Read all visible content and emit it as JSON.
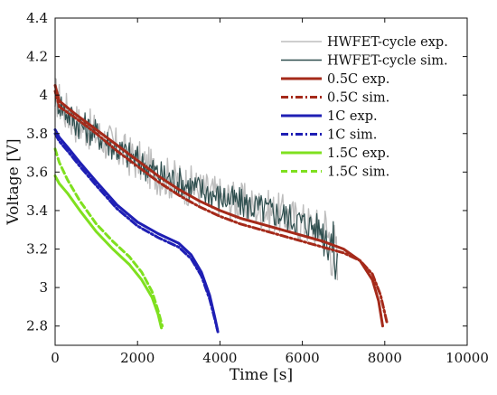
{
  "chart_data": {
    "type": "line",
    "title": "",
    "xlabel": "Time [s]",
    "ylabel": "Voltage [V]",
    "xlim": [
      0,
      10000
    ],
    "ylim": [
      2.7,
      4.4
    ],
    "xticks": [
      0,
      2000,
      4000,
      6000,
      8000,
      10000
    ],
    "xtick_labels": [
      "0",
      "2000",
      "4000",
      "6000",
      "8000",
      "10000"
    ],
    "yticks": [
      2.8,
      3.0,
      3.2,
      3.4,
      3.6,
      3.8,
      4.0,
      4.2,
      4.4
    ],
    "ytick_labels": [
      "2.8",
      "3",
      "3.2",
      "3.4",
      "3.6",
      "3.8",
      "4",
      "4.2",
      "4.4"
    ],
    "grid": false,
    "legend_position": "top-right",
    "series": [
      {
        "name": "HWFET-cycle exp.",
        "color": "#bdbdbd",
        "dash": "solid",
        "noisy": true,
        "noise_amplitude": 0.11,
        "x": [
          0,
          200,
          500,
          1000,
          1500,
          2000,
          2500,
          3000,
          3500,
          4000,
          4500,
          5000,
          5500,
          6000,
          6500,
          6700,
          6800,
          6850
        ],
        "y": [
          4.0,
          3.93,
          3.86,
          3.8,
          3.72,
          3.66,
          3.59,
          3.55,
          3.51,
          3.47,
          3.44,
          3.41,
          3.38,
          3.34,
          3.3,
          3.25,
          3.15,
          3.08
        ]
      },
      {
        "name": "HWFET-cycle sim.",
        "color": "#2f4f4f",
        "dash": "solid",
        "noisy": true,
        "noise_amplitude": 0.08,
        "x": [
          0,
          200,
          500,
          1000,
          1500,
          2000,
          2500,
          3000,
          3500,
          4000,
          4500,
          5000,
          5500,
          6000,
          6500,
          6700,
          6800,
          6850
        ],
        "y": [
          4.0,
          3.93,
          3.86,
          3.8,
          3.72,
          3.66,
          3.59,
          3.55,
          3.51,
          3.47,
          3.44,
          3.41,
          3.38,
          3.34,
          3.3,
          3.25,
          3.15,
          3.08
        ]
      },
      {
        "name": "0.5C exp.",
        "color": "#a52a1a",
        "dash": "solid",
        "x": [
          0,
          100,
          500,
          1000,
          1500,
          2000,
          2500,
          3000,
          3500,
          4000,
          4500,
          5000,
          5500,
          6000,
          6500,
          7000,
          7400,
          7700,
          7850,
          7950
        ],
        "y": [
          4.05,
          3.97,
          3.9,
          3.82,
          3.74,
          3.66,
          3.58,
          3.51,
          3.45,
          3.4,
          3.36,
          3.33,
          3.3,
          3.27,
          3.24,
          3.2,
          3.14,
          3.04,
          2.93,
          2.8
        ]
      },
      {
        "name": "0.5C sim.",
        "color": "#a52a1a",
        "dash": "dashdot",
        "x": [
          0,
          100,
          500,
          1000,
          1500,
          2000,
          2500,
          3000,
          3500,
          4000,
          4500,
          5000,
          5500,
          6000,
          6500,
          7000,
          7400,
          7700,
          7900,
          8050
        ],
        "y": [
          4.02,
          3.94,
          3.88,
          3.8,
          3.71,
          3.63,
          3.55,
          3.48,
          3.42,
          3.37,
          3.33,
          3.3,
          3.27,
          3.24,
          3.21,
          3.18,
          3.14,
          3.07,
          2.96,
          2.82
        ]
      },
      {
        "name": "1C exp.",
        "color": "#1f1fb4",
        "dash": "solid",
        "x": [
          0,
          100,
          300,
          600,
          1000,
          1500,
          2000,
          2500,
          3000,
          3300,
          3550,
          3750,
          3870,
          3940
        ],
        "y": [
          3.82,
          3.78,
          3.73,
          3.65,
          3.55,
          3.43,
          3.34,
          3.28,
          3.23,
          3.17,
          3.08,
          2.96,
          2.85,
          2.78
        ]
      },
      {
        "name": "1C sim.",
        "color": "#1f1fb4",
        "dash": "dashdot",
        "x": [
          0,
          100,
          300,
          600,
          1000,
          1500,
          2000,
          2500,
          3000,
          3300,
          3550,
          3750,
          3870,
          3950
        ],
        "y": [
          3.8,
          3.76,
          3.71,
          3.63,
          3.53,
          3.41,
          3.32,
          3.26,
          3.21,
          3.15,
          3.06,
          2.94,
          2.84,
          2.77
        ]
      },
      {
        "name": "1.5C exp.",
        "color": "#7fe01f",
        "dash": "solid",
        "x": [
          0,
          100,
          300,
          600,
          1000,
          1400,
          1800,
          2100,
          2350,
          2500,
          2580
        ],
        "y": [
          3.58,
          3.54,
          3.49,
          3.4,
          3.29,
          3.2,
          3.12,
          3.04,
          2.95,
          2.86,
          2.79
        ]
      },
      {
        "name": "1.5C sim.",
        "color": "#7fe01f",
        "dash": "dashed",
        "x": [
          0,
          100,
          300,
          600,
          1000,
          1400,
          1800,
          2100,
          2350,
          2500,
          2600
        ],
        "y": [
          3.72,
          3.65,
          3.56,
          3.45,
          3.33,
          3.24,
          3.16,
          3.08,
          2.98,
          2.88,
          2.8
        ]
      }
    ]
  }
}
